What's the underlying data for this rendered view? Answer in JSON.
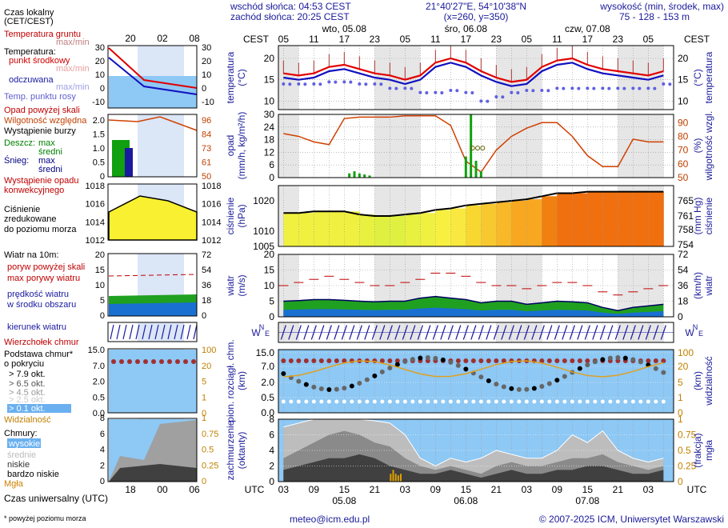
{
  "header": {
    "sunrise": "wschód słońca: 04:53 CEST",
    "sunset": "zachód słońca: 20:25 CEST",
    "coords": "21°40'27\"E, 54°10'38\"N",
    "grid": "(x=260,  y=350)",
    "height_label": "wysokość (min, środek, max)",
    "height_values": "75 - 128 - 153 m"
  },
  "time": {
    "cest_label": "CEST",
    "utc_label": "UTC",
    "cest_ticks": [
      "05",
      "11",
      "17",
      "23",
      "05",
      "11",
      "17",
      "23",
      "05",
      "11",
      "17",
      "23",
      "05"
    ],
    "utc_ticks": [
      "03",
      "09",
      "15",
      "21",
      "03",
      "09",
      "15",
      "21",
      "03",
      "09",
      "15",
      "21",
      "03"
    ],
    "days": [
      "wto, 05.08",
      "śro, 06.08",
      "czw, 07.08"
    ],
    "utc_days": [
      "05.08",
      "06.08",
      "07.08"
    ]
  },
  "legend": {
    "local_time": "Czas lokalny",
    "local_time2": "(CET/CEST)",
    "local_ticks": [
      "20",
      "02",
      "08"
    ],
    "utc_ticks": [
      "18",
      "00",
      "06"
    ],
    "utc_time": "Czas uniwersalny (UTC)",
    "footnote": "* powyżej poziomu morza",
    "temp_soil": "Temperatura gruntu",
    "temp_soil_sub": "max/min",
    "temp": "Temperatura:",
    "temp_mid": "punkt środkowy",
    "temp_mm": "max/min",
    "feels": "odczuwana",
    "feels_mm": "max/min",
    "dew": "Temp. punktu rosy",
    "t_left_ticks": [
      "30",
      "20",
      "10",
      "0",
      "-10"
    ],
    "t_right_ticks": [
      "30",
      "20",
      "10",
      "0",
      "-10"
    ],
    "precip_over": "Opad powyżej skali",
    "humidity": "Wilgotność względna",
    "storm": "Wystąpienie burzy",
    "rain": "Deszcz:",
    "rain_max": "max",
    "rain_mid": "średni",
    "snow": "Śnieg:",
    "snow_max": "max",
    "snow_mid": "średni",
    "precip_event": "Wystąpienie opadu",
    "precip_event2": "konwekcyjnego",
    "p_left_ticks": [
      "2.0",
      "1.5",
      "1.0",
      "0.5",
      "0"
    ],
    "p_right_ticks": [
      "96",
      "84",
      "73",
      "61",
      "50"
    ],
    "pressure": "Ciśnienie",
    "pressure2": "zredukowane",
    "pressure3": "do poziomu morza",
    "pr_left_ticks": [
      "1018",
      "1016",
      "1014",
      "1012"
    ],
    "pr_right_ticks": [
      "1018",
      "1016",
      "1014",
      "1012"
    ],
    "wind": "Wiatr na 10m:",
    "gust_over": "poryw powyżej skali",
    "gust_max": "max porywy wiatru",
    "wind_avg": "prędkość wiatru",
    "wind_avg2": "w środku obszaru",
    "w_left_ticks": [
      "20",
      "15",
      "10",
      "5",
      "0"
    ],
    "w_right_ticks": [
      "72",
      "54",
      "36",
      "18",
      "0"
    ],
    "wind_dir": "kierunek wiatru",
    "cloud_top": "Wierzchołek chmur",
    "cloud_base": "Podstawa chmur*",
    "cloud_base2": "o pokryciu",
    "ok1": "> 7.9 okt.",
    "ok2": "> 6.5 okt.",
    "ok3": "> 4.5 okt.",
    "ok4": "> 2.5 okt.",
    "ok5": "> 0.1 okt.",
    "visibility": "Widzialność",
    "cb_left_ticks": [
      "15.0",
      "7.0",
      "2.0",
      "0.5",
      "0.0"
    ],
    "cb_right_ticks": [
      "100",
      "20",
      "5",
      "1",
      "0"
    ],
    "clouds": "Chmury:",
    "c_high": "wysokie",
    "c_mid": "średnie",
    "c_low": "niskie",
    "c_vlow": "bardzo niskie",
    "fog": "Mgła",
    "cl_left_ticks": [
      "8",
      "6",
      "4",
      "2",
      "0"
    ],
    "cl_right_ticks": [
      "1",
      "0.75",
      "0.5",
      "0.25",
      "0"
    ]
  },
  "panels": {
    "temp_label": "temperatura",
    "temp_unit": "(°C)",
    "precip_label": "opad",
    "precip_unit": "(mm/h, kg/m²/h)",
    "hum_label": "wilgotność wzgl.",
    "hum_unit": "(%)",
    "press_label": "ciśnienie",
    "press_unit": "(hPa)",
    "press_unit2": "(mm Hg)",
    "wind_label": "wiatr",
    "wind_unit": "(m/s)",
    "wind_unit2": "(km/h)",
    "cloud_label": "pion. rozciągł. chm.",
    "cloud_unit": "(km)",
    "vis_label": "widzialność",
    "vis_unit": "(km)",
    "cover_label": "zachmurzenie",
    "cover_unit": "(oktanty)",
    "fog_label": "mgła",
    "fog_unit": "(frakcja)"
  },
  "chart_data": {
    "type": "line",
    "x_hours_utc": [
      0,
      3,
      6,
      9,
      12,
      15,
      18,
      21,
      24,
      27,
      30,
      33,
      36,
      39,
      42,
      45,
      48,
      51,
      54,
      57,
      60,
      63,
      66,
      69,
      72,
      75
    ],
    "temp": {
      "yticks_left": [
        "20",
        "15",
        "10"
      ],
      "yticks_right": [
        "20",
        "15",
        "10"
      ],
      "ylim": [
        8,
        23
      ],
      "mid": [
        16.5,
        16,
        16.5,
        18,
        18.5,
        17.5,
        16.5,
        16,
        15,
        16,
        19,
        20,
        19,
        17,
        15.5,
        14.5,
        15,
        18,
        19.5,
        20,
        18.5,
        17.5,
        17,
        16.5,
        16,
        17
      ],
      "feels": [
        15.5,
        15,
        15.5,
        17,
        17.5,
        16.5,
        15.5,
        15,
        14,
        15,
        18,
        19,
        18,
        16,
        14.5,
        13.5,
        14,
        17,
        18.5,
        19,
        17.5,
        16.5,
        16,
        15.5,
        15,
        16
      ],
      "dew": [
        14,
        14,
        14,
        14.5,
        14.5,
        14,
        14,
        13,
        13,
        12,
        12,
        12.5,
        12,
        10,
        11,
        12,
        12.5,
        12.5,
        13,
        13,
        13,
        13,
        13,
        13,
        13,
        14
      ]
    },
    "precip": {
      "yticks_left": [
        "30",
        "24",
        "18",
        "12",
        "6",
        "0"
      ],
      "yticks_right": [
        "90",
        "80",
        "70",
        "60",
        "50"
      ],
      "ylim": [
        0,
        30
      ],
      "humidity": [
        82,
        80,
        76,
        74,
        93,
        94,
        94,
        94,
        95,
        95,
        95,
        88,
        62,
        54,
        70,
        80,
        86,
        90,
        90,
        80,
        66,
        58,
        58,
        78,
        76,
        76
      ]
    },
    "pressure": {
      "yticks_left": [
        "1020",
        "1010",
        "1005"
      ],
      "yticks_right": [
        "765",
        "761",
        "758",
        "754"
      ],
      "ylim": [
        1005,
        1025
      ],
      "values": [
        1016,
        1016,
        1016.5,
        1016.5,
        1016.5,
        1015.5,
        1015,
        1015,
        1015.5,
        1016,
        1017,
        1017.5,
        1018.5,
        1019,
        1019.5,
        1020,
        1020.5,
        1021.5,
        1022.5,
        1022.5,
        1023,
        1023,
        1023,
        1023,
        1023,
        1023
      ]
    },
    "wind": {
      "yticks_left": [
        "20",
        "15",
        "10",
        "5",
        "0"
      ],
      "yticks_right": [
        "72",
        "54",
        "36",
        "18",
        "0"
      ],
      "ylim": [
        0,
        20
      ],
      "speed": [
        5,
        5.2,
        5.5,
        5.5,
        5.3,
        5,
        4.8,
        5,
        5,
        6,
        6.5,
        6,
        5.5,
        4.5,
        5,
        5,
        4,
        4.5,
        5,
        4.8,
        4.5,
        3,
        2,
        3,
        3.5,
        4
      ],
      "gusts": [
        10,
        11,
        12,
        13,
        12,
        11,
        10,
        10,
        11,
        12,
        14,
        14,
        13,
        11,
        10,
        10,
        9,
        10,
        11,
        11,
        10,
        8,
        7,
        8,
        9,
        10
      ]
    },
    "cloud": {
      "yticks_left": [
        "15.0",
        "7.0",
        "2.0",
        "0.5",
        "0.0"
      ],
      "yticks_right": [
        "100",
        "20",
        "5",
        "1",
        "0"
      ]
    },
    "cover": {
      "yticks_left": [
        "8",
        "6",
        "4",
        "2",
        "0"
      ],
      "yticks_right": [
        "1",
        "0.75",
        "0.5",
        "0.25",
        "0"
      ],
      "ylim": [
        0,
        8
      ]
    }
  }
}
